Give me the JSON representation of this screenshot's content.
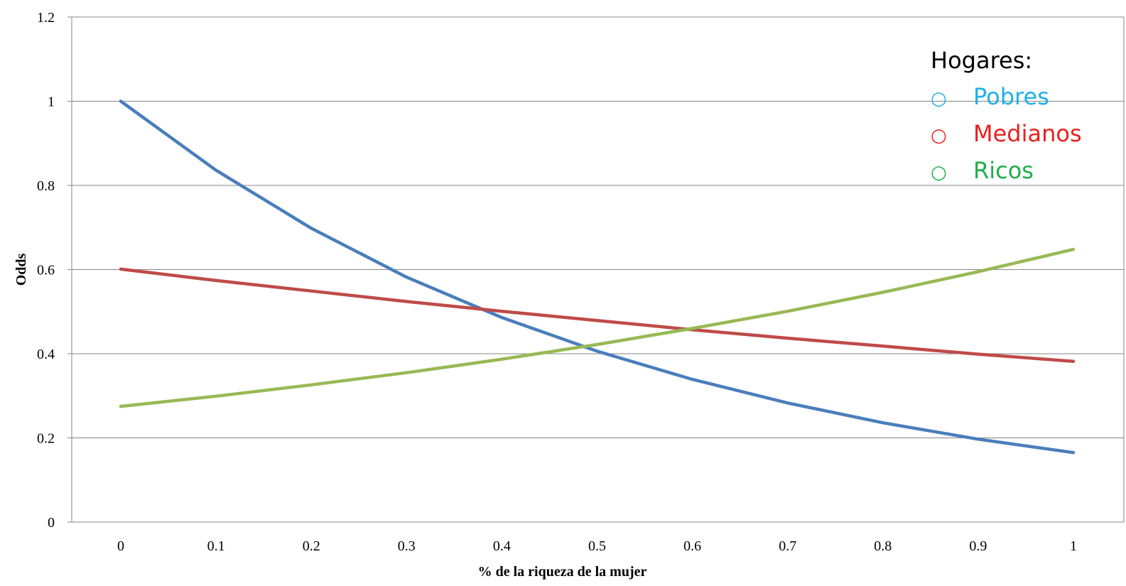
{
  "chart_data": {
    "type": "line",
    "title": "",
    "xlabel": "% de la riqueza de la mujer",
    "ylabel": "Odds",
    "x": [
      0,
      0.1,
      0.2,
      0.3,
      0.4,
      0.5,
      0.6,
      0.7,
      0.8,
      0.9,
      1
    ],
    "x_tick_labels": [
      "0",
      "0.1",
      "0.2",
      "0.3",
      "0.4",
      "0.5",
      "0.6",
      "0.7",
      "0.8",
      "0.9",
      "1"
    ],
    "y_tick_labels": [
      "0",
      "0.2",
      "0.4",
      "0.6",
      "0.8",
      "1",
      "1.2"
    ],
    "ylim": [
      0,
      1.2
    ],
    "grid": "horizontal",
    "legend_title": "Hogares:",
    "legend_position": "top-right",
    "legend_marker": "○",
    "series": [
      {
        "name": "Pobres",
        "color": "#4A7EBB",
        "legend_color": "#1FB0E8",
        "values": [
          1.0,
          0.836,
          0.698,
          0.582,
          0.486,
          0.406,
          0.339,
          0.283,
          0.236,
          0.197,
          0.165
        ]
      },
      {
        "name": "Medianos",
        "color": "#BE4B48",
        "legend_color": "#E8201D",
        "values": [
          0.601,
          0.574,
          0.549,
          0.524,
          0.501,
          0.479,
          0.457,
          0.437,
          0.418,
          0.399,
          0.382
        ]
      },
      {
        "name": "Ricos",
        "color": "#98B954",
        "legend_color": "#1FAE4A",
        "values": [
          0.275,
          0.299,
          0.326,
          0.355,
          0.387,
          0.422,
          0.46,
          0.501,
          0.546,
          0.595,
          0.648
        ]
      }
    ]
  }
}
